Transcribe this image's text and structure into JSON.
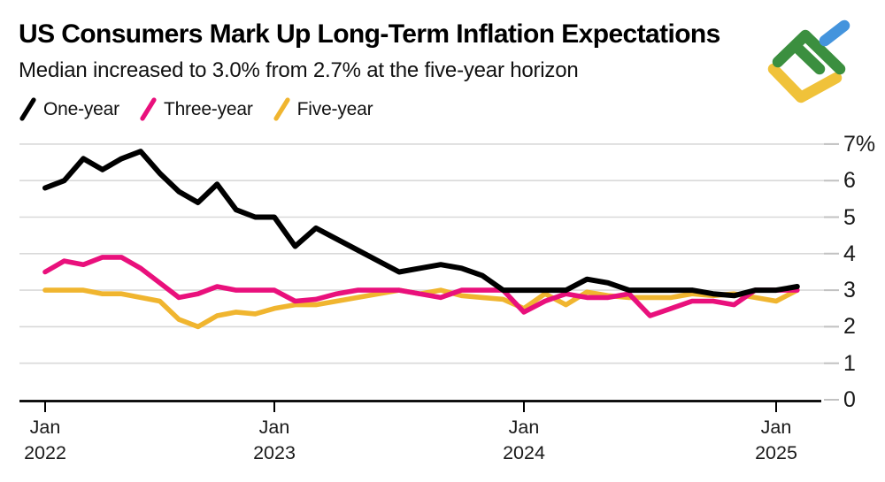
{
  "header": {
    "title": "US Consumers Mark Up Long-Term Inflation Expectations",
    "subtitle": "Median increased to 3.0% from 2.7% at the five-year horizon"
  },
  "logo": {
    "description": "broker logo mark",
    "green": "#3b8f3f",
    "blue": "#4494dd",
    "yellow": "#f0c23a"
  },
  "chart_data": {
    "type": "line",
    "title": "US Consumers Mark Up Long-Term Inflation Expectations",
    "subtitle": "Median increased to 3.0% from 2.7% at the five-year horizon",
    "x_unit": "month",
    "x_start": "Jan 2022",
    "x_end": "Feb 2025",
    "ylim": [
      0,
      7
    ],
    "grid": "horizontal",
    "legend_position": "top-left",
    "colors": {
      "gridline": "#d9d9d9",
      "axis": "#000000",
      "tick_stub": "#c2c2c2",
      "label": "#1a1a1a"
    },
    "y_ticks": [
      {
        "value": 7,
        "label": "7%"
      },
      {
        "value": 6,
        "label": "6"
      },
      {
        "value": 5,
        "label": "5"
      },
      {
        "value": 4,
        "label": "4"
      },
      {
        "value": 3,
        "label": "3"
      },
      {
        "value": 2,
        "label": "2"
      },
      {
        "value": 1,
        "label": "1"
      },
      {
        "value": 0,
        "label": "0"
      }
    ],
    "x_ticks": [
      {
        "index": 0,
        "month": "Jan",
        "year": "2022"
      },
      {
        "index": 12,
        "month": "Jan",
        "year": "2023"
      },
      {
        "index": 24,
        "month": "Jan",
        "year": "2024"
      },
      {
        "index": 36,
        "month": "Jan",
        "year": "2025"
      }
    ],
    "series": [
      {
        "name": "One-year",
        "color": "#000000",
        "values": [
          5.8,
          6.0,
          6.6,
          6.3,
          6.6,
          6.8,
          6.2,
          5.7,
          5.4,
          5.9,
          5.2,
          5.0,
          5.0,
          4.2,
          4.7,
          4.4,
          4.1,
          3.8,
          3.5,
          3.6,
          3.7,
          3.6,
          3.4,
          3.0,
          3.0,
          3.0,
          3.0,
          3.3,
          3.2,
          3.0,
          3.0,
          3.0,
          3.0,
          2.9,
          2.85,
          3.0,
          3.0,
          3.1
        ]
      },
      {
        "name": "Three-year",
        "color": "#e9107c",
        "values": [
          3.5,
          3.8,
          3.7,
          3.9,
          3.9,
          3.6,
          3.2,
          2.8,
          2.9,
          3.1,
          3.0,
          3.0,
          3.0,
          2.7,
          2.75,
          2.9,
          3.0,
          3.0,
          3.0,
          2.9,
          2.8,
          3.0,
          3.0,
          3.0,
          2.4,
          2.7,
          2.9,
          2.8,
          2.8,
          2.9,
          2.3,
          2.5,
          2.7,
          2.7,
          2.6,
          3.0,
          3.0,
          3.0
        ]
      },
      {
        "name": "Five-year",
        "color": "#f0b52f",
        "values": [
          3.0,
          3.0,
          3.0,
          2.9,
          2.9,
          2.8,
          2.7,
          2.2,
          2.0,
          2.3,
          2.4,
          2.35,
          2.5,
          2.6,
          2.6,
          2.7,
          2.8,
          2.9,
          3.0,
          2.9,
          3.0,
          2.85,
          2.8,
          2.75,
          2.5,
          2.9,
          2.6,
          2.95,
          2.85,
          2.8,
          2.8,
          2.8,
          2.9,
          2.85,
          2.9,
          2.8,
          2.7,
          3.0
        ]
      }
    ]
  }
}
